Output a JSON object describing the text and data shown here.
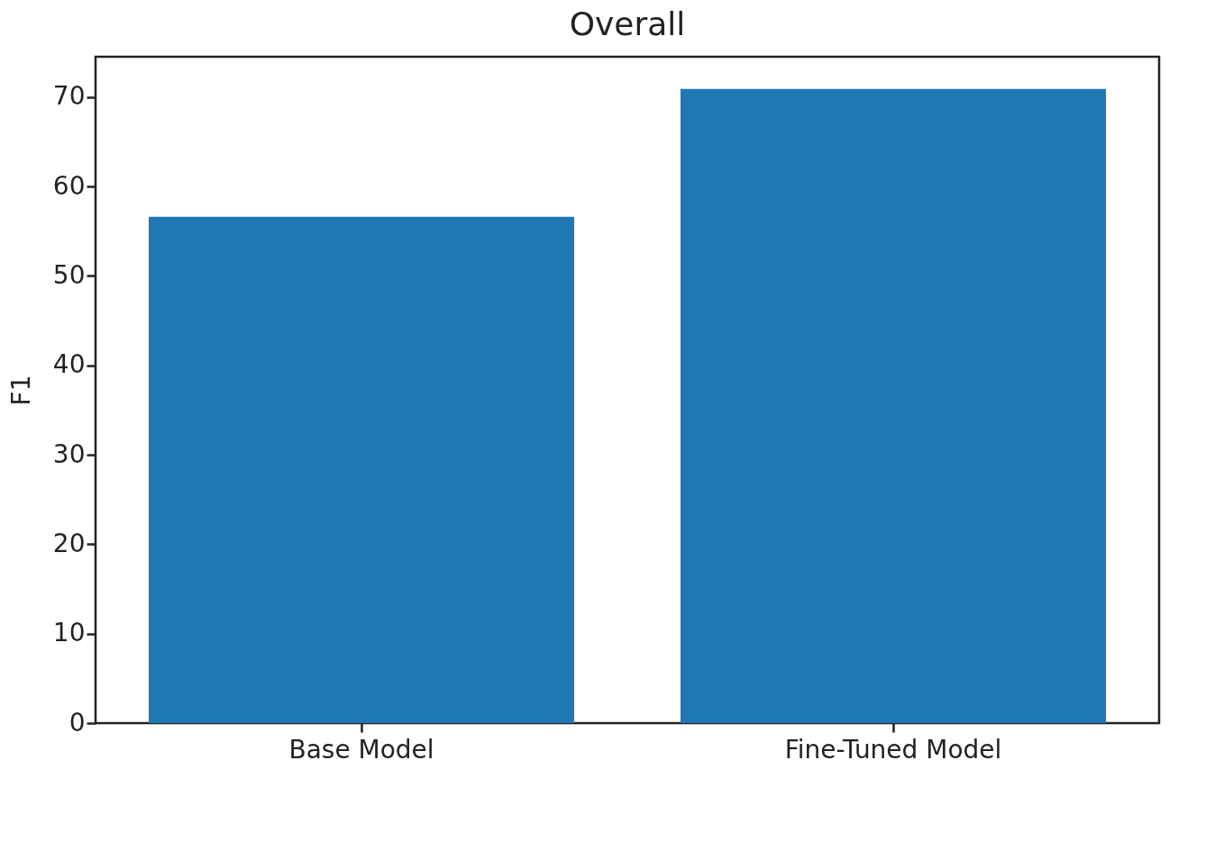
{
  "chart_data": {
    "type": "bar",
    "title": "Overall",
    "ylabel": "F1",
    "categories": [
      "Base Model",
      "Fine-Tuned Model"
    ],
    "values": [
      56.6,
      70.9
    ],
    "color": "#1f77b4",
    "ylim": [
      0,
      74.5
    ],
    "yticks": [
      0,
      10,
      20,
      30,
      40,
      50,
      60,
      70
    ]
  }
}
